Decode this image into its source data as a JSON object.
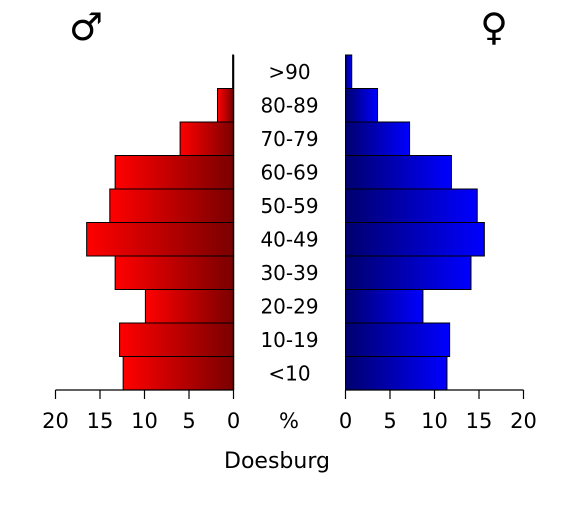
{
  "chart_data": {
    "type": "bar",
    "orientation": "horizontal",
    "layout": "population-pyramid",
    "title": "Doesburg",
    "center_label": "%",
    "x_range": [
      0,
      20
    ],
    "x_ticks": [
      20,
      15,
      10,
      5,
      0
    ],
    "categories": [
      "<10",
      "10-19",
      "20-29",
      "30-39",
      "40-49",
      "50-59",
      "60-69",
      "70-79",
      "80-89",
      ">90"
    ],
    "series": [
      {
        "name": "♂",
        "side": "left",
        "color_light": "#ff0000",
        "color_dark": "#7a0000",
        "values": [
          12.4,
          12.8,
          9.9,
          13.3,
          16.5,
          13.9,
          13.3,
          6.0,
          1.8,
          0.1
        ]
      },
      {
        "name": "♀",
        "side": "right",
        "color_light": "#0000ff",
        "color_dark": "#00006e",
        "values": [
          11.4,
          11.7,
          8.7,
          14.1,
          15.6,
          14.8,
          11.9,
          7.2,
          3.6,
          0.7
        ]
      }
    ],
    "grid": false,
    "legend": "symbols above each side"
  }
}
